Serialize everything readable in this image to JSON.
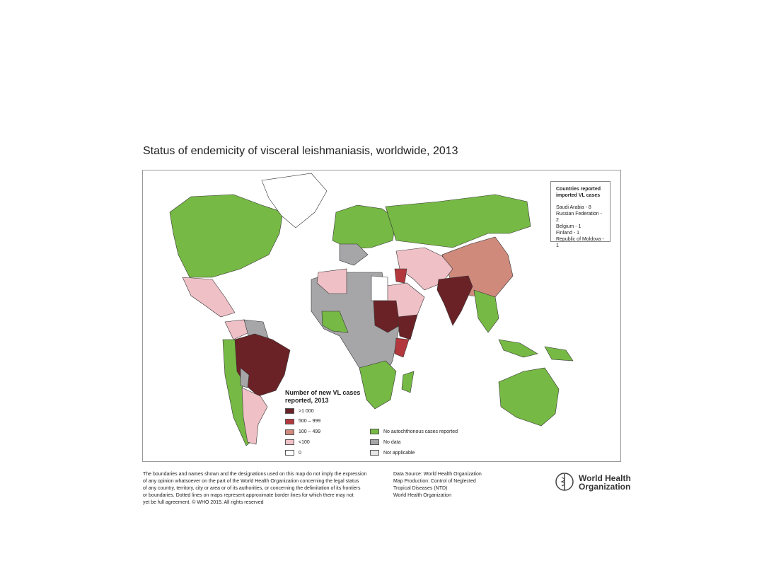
{
  "title": "Status of endemicity of visceral leishmaniasis, worldwide, 2013",
  "imported_box": {
    "title": "Countries reported imported VL cases",
    "items": [
      "Saudi Arabia - 8",
      "Russian Federation - 2",
      "Belgium - 1",
      "Finland - 1",
      "Republic of Moldova - 1"
    ]
  },
  "legend": {
    "title": "Number of new VL cases reported, 2013",
    "items": [
      {
        "label": ">1 000",
        "color": "#6b2226"
      },
      {
        "label": "500 – 999",
        "color": "#b3383d"
      },
      {
        "label": "100 – 499",
        "color": "#cf8a7c"
      },
      {
        "label": "<100",
        "color": "#efc0c6"
      },
      {
        "label": "0",
        "color": "#ffffff"
      },
      {
        "label": "No autochthonous cases reported",
        "color": "#76b944"
      },
      {
        "label": "No data",
        "color": "#a6a6a8"
      },
      {
        "label": "Not applicable",
        "color": "#e6e6e6"
      }
    ]
  },
  "disclaimer": [
    "The boundaries and names shown and the designations used on this map do not imply the expression",
    "of any opinion whatsoever on the part of the World Health Organization concerning the legal status",
    "of any country, territory, city or area or of its authorities, or concerning the delimitation of its frontiers",
    "or boundaries. Dotted lines on maps represent approximate border lines for which there may not",
    "yet be full agreement. © WHO 2015. All rights reserved"
  ],
  "source": [
    "Data Source: World Health Organization",
    "Map Production: Control of Neglected",
    "Tropical Diseases (NTD)",
    "World Health Organization"
  ],
  "logo": [
    "World Health",
    "Organization"
  ]
}
